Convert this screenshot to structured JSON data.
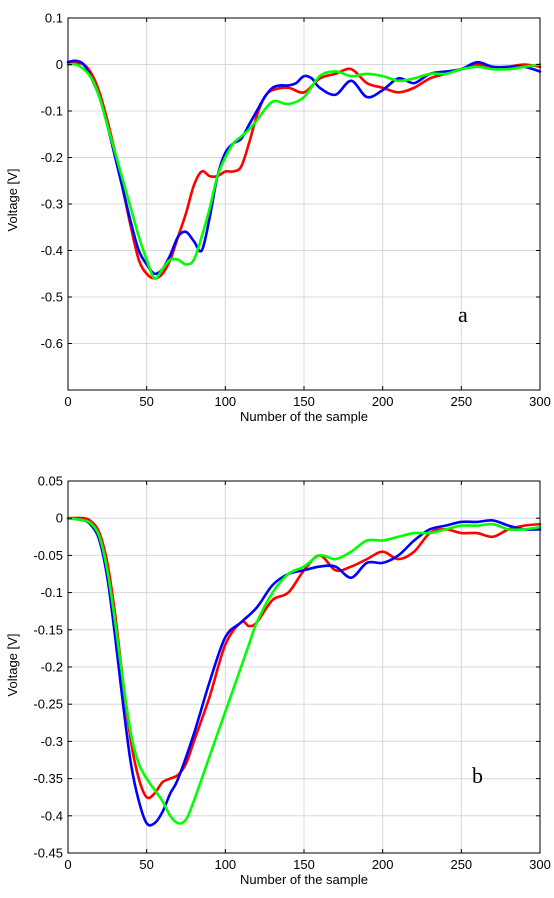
{
  "chart_data": [
    {
      "type": "line",
      "panel_label": "a",
      "xlabel": "Number of the sample",
      "ylabel": "Voltage [V]",
      "xlim": [
        0,
        300
      ],
      "ylim": [
        -0.7,
        0.1
      ],
      "xticks": [
        "0",
        "50",
        "100",
        "150",
        "200",
        "250",
        "300"
      ],
      "xtick_values": [
        0,
        50,
        100,
        150,
        200,
        250,
        300
      ],
      "yticks": [
        "0.1",
        "0",
        "-0.1",
        "-0.2",
        "-0.3",
        "-0.4",
        "-0.5",
        "-0.6"
      ],
      "ytick_values": [
        0.1,
        0,
        -0.1,
        -0.2,
        -0.3,
        -0.4,
        -0.5,
        -0.6
      ],
      "grid": true,
      "series": [
        {
          "color": "#ff0000",
          "x": [
            0,
            5,
            10,
            15,
            20,
            25,
            30,
            35,
            40,
            45,
            50,
            55,
            60,
            65,
            70,
            75,
            80,
            85,
            90,
            95,
            100,
            105,
            110,
            115,
            120,
            125,
            130,
            140,
            150,
            160,
            170,
            180,
            190,
            200,
            210,
            220,
            230,
            240,
            250,
            260,
            270,
            280,
            290,
            300
          ],
          "y": [
            0.0,
            0.003,
            0.0,
            -0.02,
            -0.06,
            -0.12,
            -0.19,
            -0.27,
            -0.35,
            -0.42,
            -0.45,
            -0.46,
            -0.45,
            -0.42,
            -0.37,
            -0.32,
            -0.26,
            -0.23,
            -0.24,
            -0.24,
            -0.23,
            -0.23,
            -0.22,
            -0.17,
            -0.11,
            -0.07,
            -0.055,
            -0.05,
            -0.06,
            -0.03,
            -0.02,
            -0.01,
            -0.04,
            -0.05,
            -0.06,
            -0.05,
            -0.03,
            -0.02,
            -0.01,
            0.0,
            -0.01,
            -0.005,
            0.0,
            -0.005
          ]
        },
        {
          "color": "#0000ff",
          "x": [
            0,
            5,
            10,
            15,
            20,
            25,
            30,
            35,
            40,
            45,
            50,
            55,
            60,
            65,
            70,
            75,
            80,
            85,
            90,
            95,
            100,
            105,
            110,
            115,
            120,
            125,
            130,
            135,
            140,
            145,
            150,
            155,
            160,
            170,
            180,
            190,
            200,
            210,
            220,
            230,
            240,
            250,
            260,
            270,
            280,
            290,
            300
          ],
          "y": [
            0.005,
            0.008,
            0.0,
            -0.03,
            -0.07,
            -0.13,
            -0.2,
            -0.27,
            -0.34,
            -0.4,
            -0.43,
            -0.45,
            -0.44,
            -0.41,
            -0.37,
            -0.36,
            -0.38,
            -0.4,
            -0.33,
            -0.24,
            -0.19,
            -0.17,
            -0.16,
            -0.13,
            -0.1,
            -0.07,
            -0.05,
            -0.045,
            -0.045,
            -0.04,
            -0.025,
            -0.03,
            -0.05,
            -0.065,
            -0.035,
            -0.07,
            -0.055,
            -0.03,
            -0.04,
            -0.02,
            -0.015,
            -0.01,
            0.005,
            -0.005,
            -0.005,
            -0.005,
            -0.015
          ]
        },
        {
          "color": "#00ff00",
          "x": [
            0,
            5,
            10,
            15,
            20,
            25,
            30,
            35,
            40,
            45,
            50,
            55,
            60,
            65,
            70,
            75,
            80,
            85,
            90,
            95,
            100,
            105,
            110,
            115,
            120,
            130,
            140,
            150,
            160,
            170,
            180,
            190,
            200,
            210,
            220,
            230,
            240,
            250,
            260,
            270,
            280,
            290,
            300
          ],
          "y": [
            0.0,
            0.0,
            -0.01,
            -0.03,
            -0.07,
            -0.13,
            -0.19,
            -0.25,
            -0.31,
            -0.37,
            -0.42,
            -0.46,
            -0.44,
            -0.42,
            -0.42,
            -0.43,
            -0.42,
            -0.37,
            -0.31,
            -0.24,
            -0.2,
            -0.17,
            -0.155,
            -0.14,
            -0.12,
            -0.08,
            -0.085,
            -0.07,
            -0.025,
            -0.015,
            -0.025,
            -0.02,
            -0.025,
            -0.035,
            -0.03,
            -0.02,
            -0.02,
            -0.01,
            -0.005,
            -0.01,
            -0.01,
            -0.005,
            0.0
          ]
        }
      ]
    },
    {
      "type": "line",
      "panel_label": "b",
      "xlabel": "Number of the sample",
      "ylabel": "Voltage [V]",
      "xlim": [
        0,
        300
      ],
      "ylim": [
        -0.45,
        0.05
      ],
      "xticks": [
        "0",
        "50",
        "100",
        "150",
        "200",
        "250",
        "300"
      ],
      "xtick_values": [
        0,
        50,
        100,
        150,
        200,
        250,
        300
      ],
      "yticks": [
        "0.05",
        "0",
        "-0.05",
        "-0.1",
        "-0.15",
        "-0.2",
        "-0.25",
        "-0.3",
        "-0.35",
        "-0.4",
        "-0.45"
      ],
      "ytick_values": [
        0.05,
        0,
        -0.05,
        -0.1,
        -0.15,
        -0.2,
        -0.25,
        -0.3,
        -0.35,
        -0.4,
        -0.45
      ],
      "grid": true,
      "series": [
        {
          "color": "#ff0000",
          "x": [
            0,
            10,
            15,
            20,
            25,
            30,
            35,
            40,
            45,
            50,
            55,
            60,
            65,
            70,
            75,
            80,
            90,
            100,
            110,
            115,
            120,
            130,
            140,
            150,
            160,
            170,
            180,
            190,
            200,
            210,
            220,
            230,
            240,
            250,
            260,
            270,
            280,
            290,
            300
          ],
          "y": [
            0.0,
            0.0,
            -0.005,
            -0.02,
            -0.06,
            -0.13,
            -0.22,
            -0.3,
            -0.35,
            -0.375,
            -0.37,
            -0.355,
            -0.35,
            -0.345,
            -0.33,
            -0.3,
            -0.24,
            -0.17,
            -0.14,
            -0.145,
            -0.14,
            -0.11,
            -0.1,
            -0.07,
            -0.05,
            -0.07,
            -0.065,
            -0.055,
            -0.045,
            -0.055,
            -0.045,
            -0.02,
            -0.015,
            -0.02,
            -0.02,
            -0.025,
            -0.015,
            -0.01,
            -0.008
          ]
        },
        {
          "color": "#0000ff",
          "x": [
            0,
            10,
            15,
            20,
            25,
            30,
            35,
            40,
            45,
            50,
            55,
            60,
            65,
            70,
            80,
            90,
            100,
            110,
            120,
            130,
            140,
            150,
            160,
            170,
            180,
            190,
            200,
            210,
            220,
            230,
            240,
            250,
            260,
            270,
            280,
            290,
            300
          ],
          "y": [
            0.0,
            -0.003,
            -0.01,
            -0.03,
            -0.08,
            -0.16,
            -0.25,
            -0.33,
            -0.38,
            -0.41,
            -0.41,
            -0.395,
            -0.37,
            -0.35,
            -0.29,
            -0.22,
            -0.16,
            -0.14,
            -0.12,
            -0.09,
            -0.075,
            -0.07,
            -0.065,
            -0.065,
            -0.08,
            -0.06,
            -0.06,
            -0.05,
            -0.03,
            -0.015,
            -0.01,
            -0.005,
            -0.005,
            -0.003,
            -0.01,
            -0.015,
            -0.015
          ]
        },
        {
          "color": "#00ff00",
          "x": [
            0,
            10,
            15,
            20,
            25,
            30,
            35,
            40,
            45,
            50,
            55,
            60,
            65,
            70,
            75,
            80,
            90,
            100,
            110,
            115,
            120,
            130,
            140,
            150,
            160,
            170,
            180,
            190,
            200,
            210,
            220,
            230,
            240,
            250,
            260,
            270,
            280,
            290,
            300
          ],
          "y": [
            0.0,
            -0.003,
            -0.008,
            -0.025,
            -0.07,
            -0.14,
            -0.22,
            -0.29,
            -0.33,
            -0.35,
            -0.365,
            -0.38,
            -0.4,
            -0.41,
            -0.405,
            -0.38,
            -0.32,
            -0.26,
            -0.2,
            -0.17,
            -0.14,
            -0.1,
            -0.075,
            -0.065,
            -0.05,
            -0.055,
            -0.045,
            -0.03,
            -0.03,
            -0.025,
            -0.02,
            -0.02,
            -0.015,
            -0.01,
            -0.01,
            -0.008,
            -0.015,
            -0.015,
            -0.012
          ]
        }
      ]
    }
  ]
}
